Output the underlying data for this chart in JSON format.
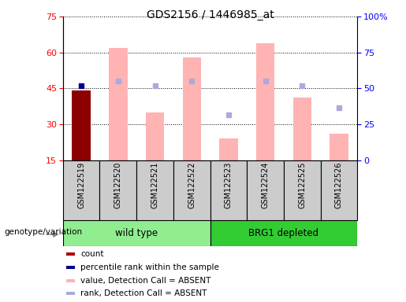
{
  "title": "GDS2156 / 1446985_at",
  "samples": [
    "GSM122519",
    "GSM122520",
    "GSM122521",
    "GSM122522",
    "GSM122523",
    "GSM122524",
    "GSM122525",
    "GSM122526"
  ],
  "ylim_left": [
    15,
    75
  ],
  "ylim_right": [
    0,
    100
  ],
  "yticks_left": [
    15,
    30,
    45,
    60,
    75
  ],
  "yticks_right": [
    0,
    25,
    50,
    75,
    100
  ],
  "ytick_labels_right": [
    "0",
    "25",
    "50",
    "75",
    "100%"
  ],
  "bar_values": [
    null,
    62,
    35,
    58,
    24,
    64,
    41,
    26
  ],
  "bar_color": "#ffb3b3",
  "count_value": 44,
  "count_color": "#8b0000",
  "count_sample_idx": 0,
  "percentile_value": 46,
  "percentile_color": "#00008b",
  "percentile_sample_idx": 0,
  "absent_rank_values": [
    null,
    48,
    46,
    48,
    34,
    48,
    46,
    37
  ],
  "absent_rank_color": "#aaaadd",
  "legend_items": [
    {
      "label": "count",
      "color": "#aa0000"
    },
    {
      "label": "percentile rank within the sample",
      "color": "#00008b"
    },
    {
      "label": "value, Detection Call = ABSENT",
      "color": "#ffb3b3"
    },
    {
      "label": "rank, Detection Call = ABSENT",
      "color": "#aaaadd"
    }
  ],
  "wt_color": "#90ee90",
  "brg_color": "#33cc33",
  "label_bg": "#cccccc"
}
